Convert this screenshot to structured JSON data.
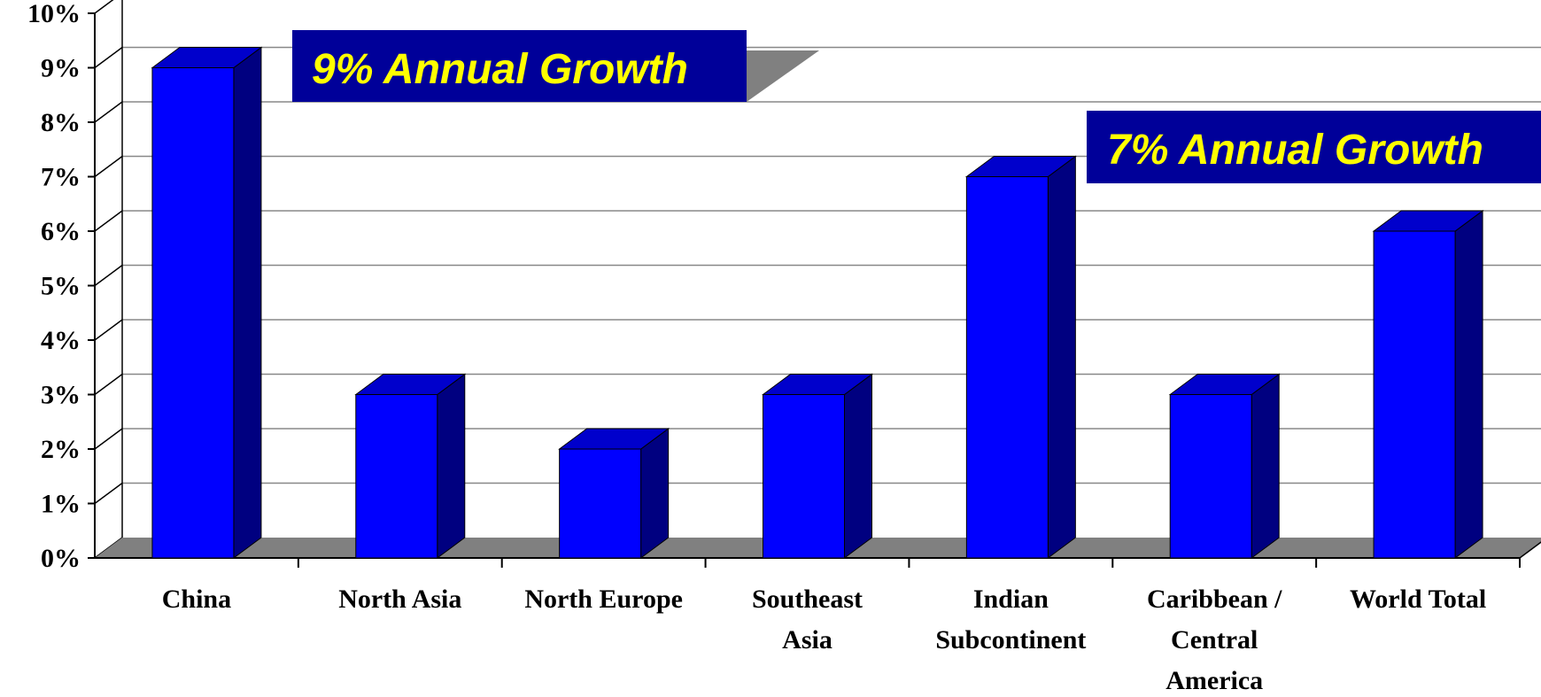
{
  "chart_data": {
    "type": "bar",
    "categories": [
      [
        "China"
      ],
      [
        "North Asia"
      ],
      [
        "North Europe"
      ],
      [
        "Southeast",
        "Asia"
      ],
      [
        "Indian",
        "Subcontinent"
      ],
      [
        "Caribbean /",
        "Central",
        "America"
      ],
      [
        "World Total"
      ]
    ],
    "values": [
      9,
      3,
      2,
      3,
      7,
      3,
      6
    ],
    "ylim": [
      0,
      10
    ],
    "yticks": [
      "0%",
      "1%",
      "2%",
      "3%",
      "4%",
      "5%",
      "6%",
      "7%",
      "8%",
      "9%",
      "10%"
    ],
    "grid": true,
    "annotations": [
      {
        "text": "9% Annual Growth"
      },
      {
        "text": "7% Annual Growth"
      }
    ],
    "colors": {
      "bar_front": "#0000ff",
      "bar_side": "#000080",
      "bar_top": "#0000cc",
      "floor": "#808080",
      "callout_bg": "#000099",
      "callout_text": "#ffff00",
      "callout_shadow": "#808080"
    }
  }
}
